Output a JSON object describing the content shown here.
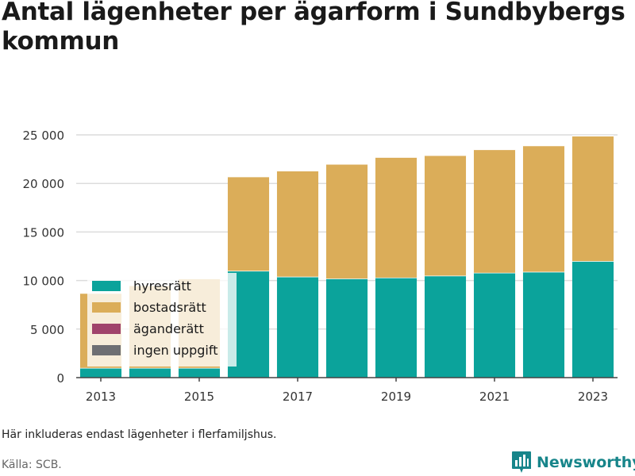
{
  "chart_data": {
    "type": "bar",
    "stacked": true,
    "title": "Antal lägenheter per ägarform i Sundbybergs kommun",
    "categories": [
      2013,
      2014,
      2015,
      2016,
      2017,
      2018,
      2019,
      2020,
      2021,
      2022,
      2023
    ],
    "x_tick_labels": [
      "2013",
      "2015",
      "2017",
      "2019",
      "2021",
      "2023"
    ],
    "y_ticks": [
      0,
      5000,
      10000,
      15000,
      20000,
      25000
    ],
    "y_tick_labels": [
      "0",
      "5 000",
      "10 000",
      "15 000",
      "20 000",
      "25 000"
    ],
    "ylim": [
      0,
      25000
    ],
    "grid": true,
    "legend_position": "bottom-left-inside",
    "series": [
      {
        "name": "hyresrätt",
        "color": "#0ba39b",
        "values": [
          1000,
          1000,
          1000,
          11000,
          10400,
          10200,
          10300,
          10500,
          10800,
          10900,
          12000
        ]
      },
      {
        "name": "bostadsrätt",
        "color": "#dbad59",
        "values": [
          7700,
          8500,
          9200,
          9700,
          10900,
          11800,
          12400,
          12400,
          12700,
          13000,
          12900
        ]
      },
      {
        "name": "äganderätt",
        "color": "#a0436b",
        "values": [
          0,
          0,
          0,
          0,
          0,
          0,
          0,
          0,
          0,
          0,
          0
        ]
      },
      {
        "name": "ingen uppgift",
        "color": "#6e6f73",
        "values": [
          0,
          0,
          0,
          0,
          0,
          0,
          0,
          0,
          0,
          0,
          0
        ]
      }
    ],
    "note": "Här inkluderas endast lägenheter i flerfamiljshus.",
    "source": "Källa: SCB."
  },
  "brand": {
    "name": "Newsworthy",
    "icon": "bar-chart-icon",
    "color": "#17858a"
  }
}
